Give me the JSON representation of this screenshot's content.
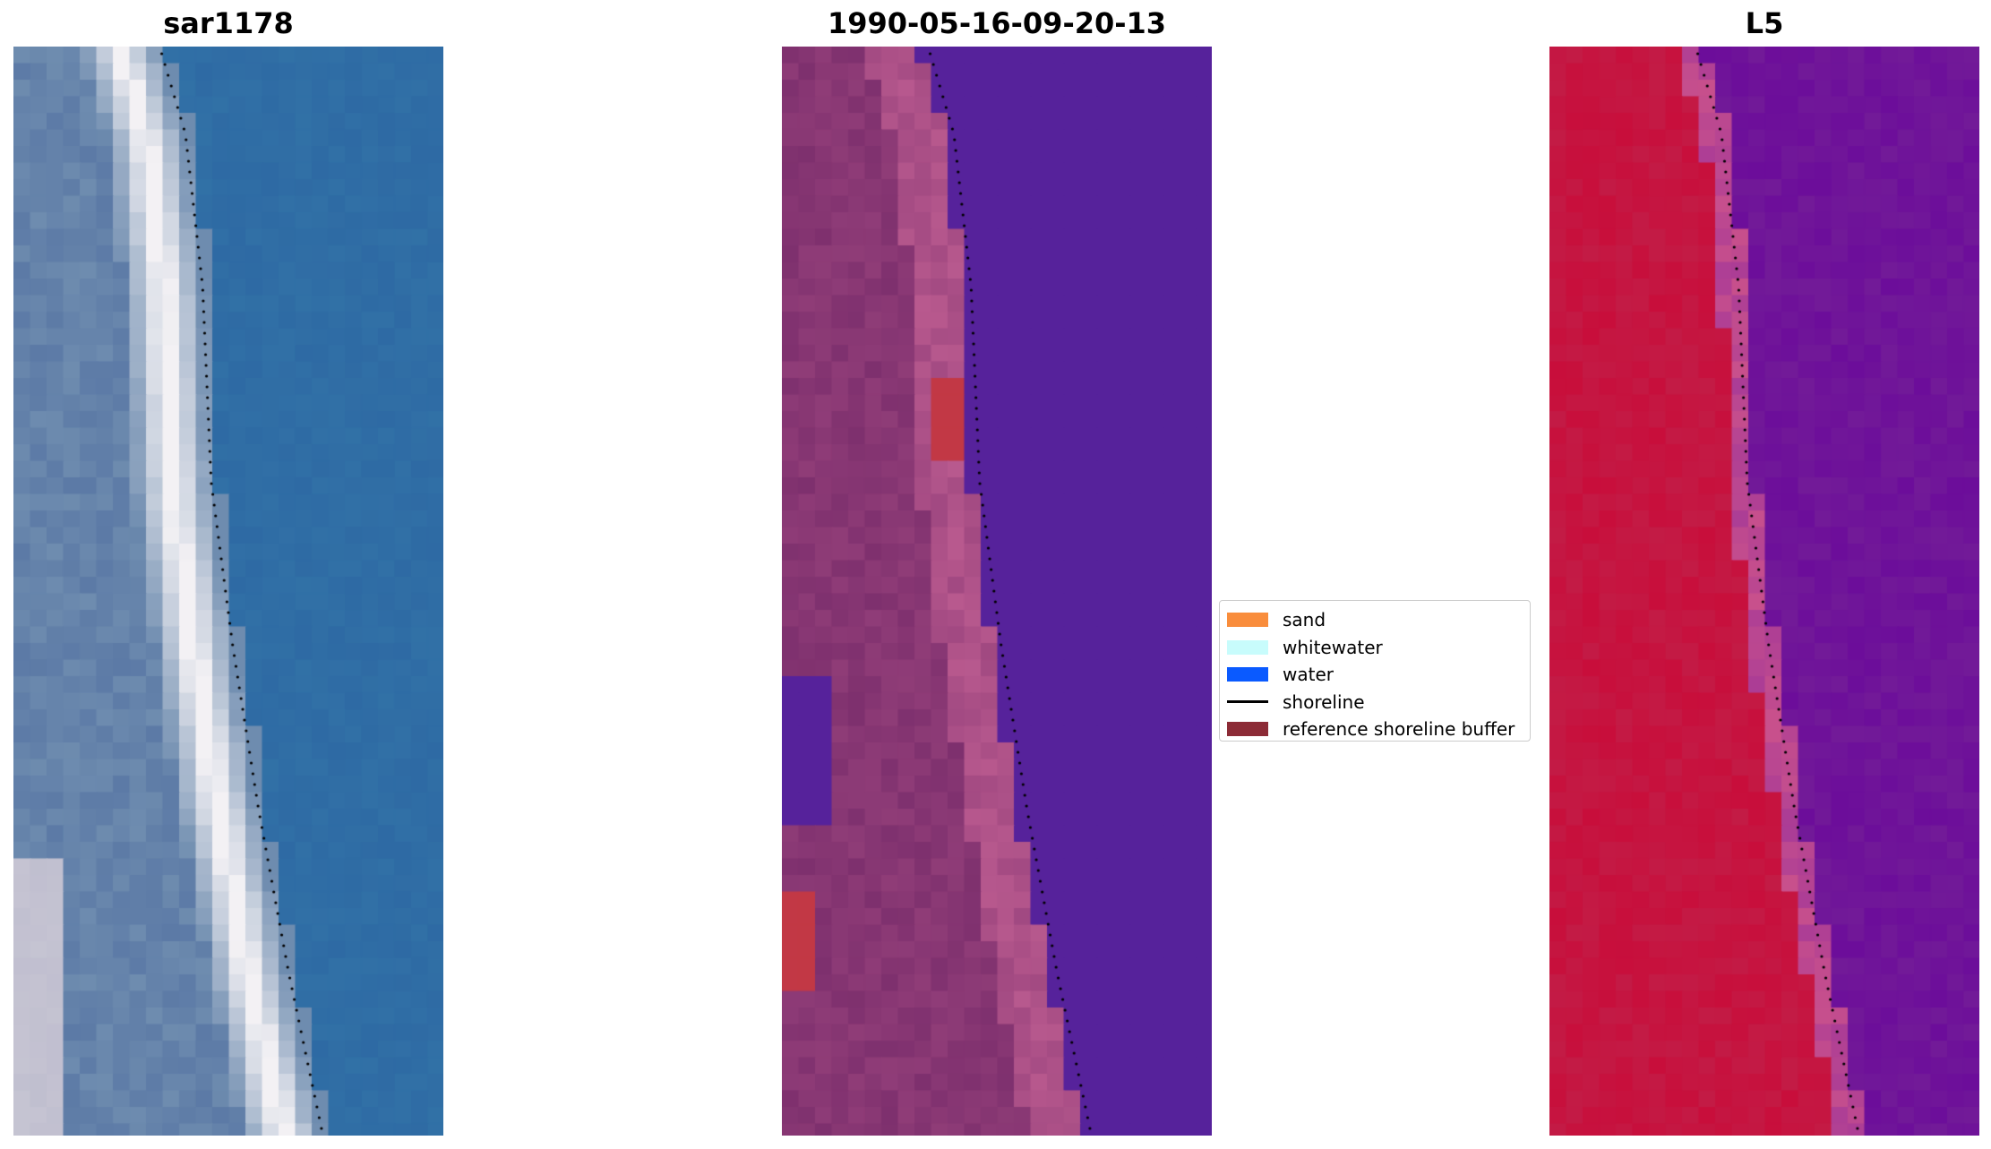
{
  "titles": {
    "rgb": "sar1178",
    "classified": "1990-05-16-09-20-13",
    "index": "L5"
  },
  "legend": [
    {
      "label": "sand",
      "color": "#f98d3c",
      "kind": "patch"
    },
    {
      "label": "whitewater",
      "color": "#c8fcfc",
      "kind": "patch"
    },
    {
      "label": "water",
      "color": "#0a5aff",
      "kind": "patch"
    },
    {
      "label": "shoreline",
      "color": "#000000",
      "kind": "line"
    },
    {
      "label": "reference shoreline buffer",
      "color": "#8c2b36",
      "kind": "patch"
    }
  ],
  "colors": {
    "classified_water": "#56229b",
    "classified_land_dark": "#7e306e",
    "classified_land_light": "#b8598e",
    "classified_buffer_red": "#c23845",
    "index_land": "#c80e3b",
    "index_water": "#6c0d9a",
    "rgb_water": "#2e6aa4",
    "rgb_sand": "#f3f1f4",
    "shoreline": "#000000"
  }
}
